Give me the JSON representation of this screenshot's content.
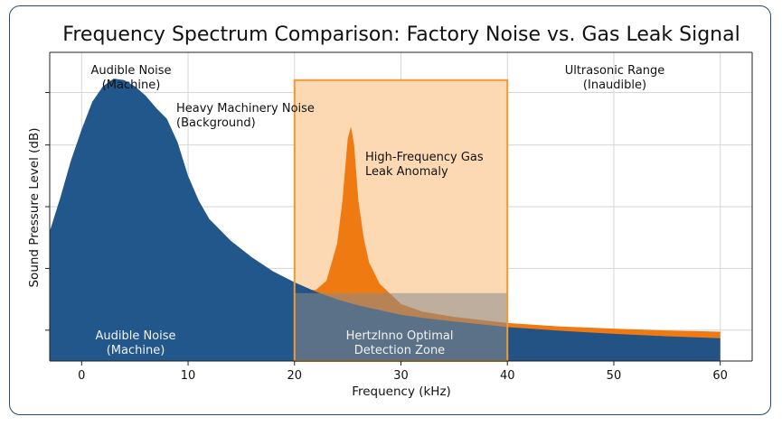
{
  "chart_data": {
    "type": "area",
    "title": "Frequency Spectrum Comparison: Factory Noise vs. Gas Leak Signal",
    "xlabel": "Frequency (kHz)",
    "ylabel": "Sound Pressure Level (dB)",
    "xlim": [
      -3,
      63
    ],
    "ylim": [
      0,
      100
    ],
    "xticks": [
      0,
      10,
      20,
      30,
      40,
      50,
      60
    ],
    "xtick_labels": [
      "0",
      "10",
      "20",
      "30",
      "40",
      "50",
      "60"
    ],
    "yticks": [
      10,
      30,
      50,
      70,
      87
    ],
    "grid": true,
    "colors": {
      "machinery": "#1b5288",
      "leak": "#f07a12",
      "zone_fill": "#fcd9b3",
      "zone_edge": "#ee9a35",
      "frame": "#2c4a66"
    },
    "series": [
      {
        "id": "machinery",
        "x": [
          -3,
          -2,
          -1,
          0,
          1,
          2,
          3,
          4,
          5,
          6,
          7,
          8,
          9,
          10,
          11,
          12,
          14,
          16,
          18,
          20,
          22,
          24,
          26,
          28,
          30,
          32,
          35,
          40,
          45,
          50,
          55,
          60
        ],
        "y": [
          42,
          53,
          65,
          75,
          84,
          89,
          91.5,
          91,
          89,
          86,
          82,
          78.5,
          71,
          60,
          52,
          46,
          39,
          33.6,
          29,
          25.5,
          22.5,
          20,
          18,
          16.5,
          15,
          14,
          12.8,
          11,
          9.8,
          8.8,
          8.0,
          7.4
        ]
      },
      {
        "id": "leak",
        "x": [
          20,
          22,
          23,
          24,
          24.5,
          25,
          25.3,
          25.6,
          26,
          26.5,
          27,
          28,
          30,
          32,
          35,
          40,
          45,
          50,
          55,
          60
        ],
        "y": [
          23,
          23,
          26,
          38,
          52,
          72,
          76,
          70,
          52,
          40,
          32,
          25,
          18.5,
          16,
          14.3,
          12.3,
          11.2,
          10.5,
          9.9,
          9.5
        ]
      }
    ],
    "shaded_region": {
      "x": [
        20,
        40
      ],
      "label_line1": "HertzInno Optimal",
      "label_line2": "Detection Zone"
    },
    "annotations": [
      {
        "id": "audible-top",
        "line1": "Audible Noise",
        "line2": "(Machine)"
      },
      {
        "id": "machinery",
        "line1": "Heavy Machinery Noise",
        "line2": "(Background)"
      },
      {
        "id": "leak",
        "line1": "High-Frequency Gas",
        "line2": "Leak Anomaly"
      },
      {
        "id": "ultrasonic",
        "line1": "Ultrasonic Range",
        "line2": "(Inaudible)"
      },
      {
        "id": "audible-bottom",
        "line1": "Audible Noise",
        "line2": "(Machine)"
      }
    ]
  }
}
